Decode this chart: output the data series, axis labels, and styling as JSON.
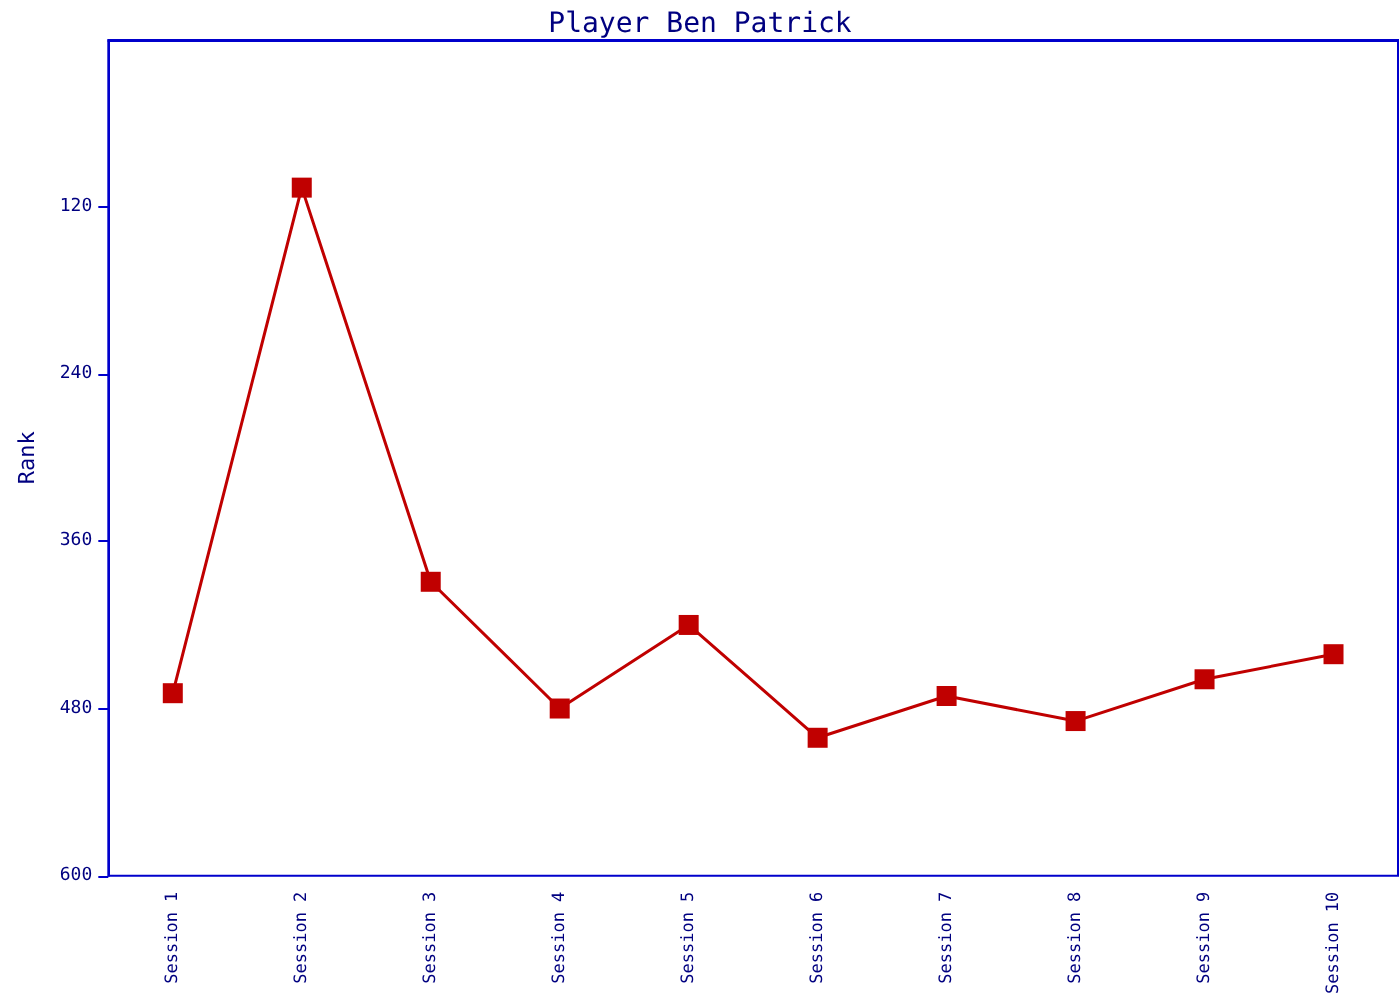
{
  "chart_data": {
    "type": "line",
    "title": "Player Ben Patrick",
    "ylabel": "Rank",
    "categories": [
      "Session 1",
      "Session 2",
      "Session 3",
      "Session 4",
      "Session 5",
      "Session 6",
      "Session 7",
      "Session 8",
      "Session 9",
      "Session 10"
    ],
    "series": [
      {
        "color": "#c00000",
        "values": [
          469,
          106,
          389,
          480,
          420,
          501,
          471,
          489,
          459,
          441
        ]
      }
    ],
    "ylim": [
      600,
      0
    ],
    "yticks": [
      120,
      240,
      360,
      480,
      600
    ],
    "grid": false,
    "marker": "square",
    "line_style": "solid"
  }
}
